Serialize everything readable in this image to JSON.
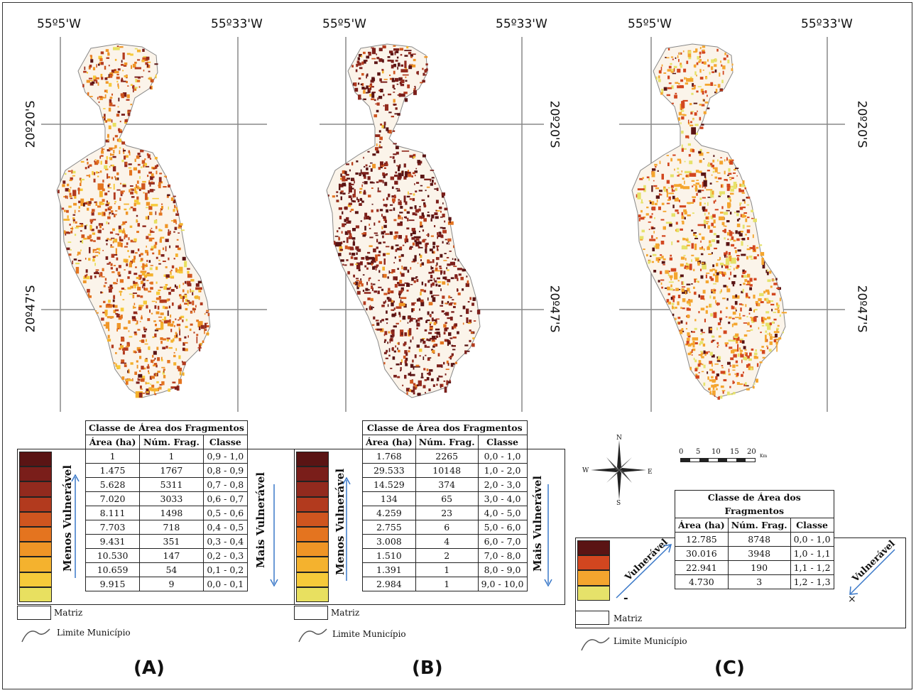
{
  "panels": {
    "a": {
      "letter": "(A)",
      "lon_left": "55º5'W",
      "lon_right": "55º33'W",
      "lat_top": "20º20'S",
      "lat_bottom": "20º47'S",
      "table_title": "Classe de Área dos Fragmentos",
      "headers": [
        "Área (ha)",
        "Núm. Frag.",
        "Classe"
      ],
      "rows": [
        [
          "1",
          "1",
          "0,9 - 1,0"
        ],
        [
          "1.475",
          "1767",
          "0,8 - 0,9"
        ],
        [
          "5.628",
          "5311",
          "0,7 - 0,8"
        ],
        [
          "7.020",
          "3033",
          "0,6 - 0,7"
        ],
        [
          "8.111",
          "1498",
          "0,5 - 0,6"
        ],
        [
          "7.703",
          "718",
          "0,4 - 0,5"
        ],
        [
          "9.431",
          "351",
          "0,3 - 0,4"
        ],
        [
          "10.530",
          "147",
          "0,2 - 0,3"
        ],
        [
          "10.659",
          "54",
          "0,1 - 0,2"
        ],
        [
          "9.915",
          "9",
          "0,0 - 0,1"
        ]
      ],
      "left_label": "Menos Vulnerável",
      "right_label": "Mais Vulnerável",
      "matriz": "Matriz",
      "limite": "Limite Município"
    },
    "b": {
      "letter": "(B)",
      "lon_left": "55º5'W",
      "lon_right": "55º33'W",
      "lat_top": "20º20'S",
      "lat_bottom": "20º47'S",
      "table_title": "Classe de Área dos Fragmentos",
      "headers": [
        "Área (ha)",
        "Núm. Frag.",
        "Classe"
      ],
      "rows": [
        [
          "1.768",
          "2265",
          "0,0 - 1,0"
        ],
        [
          "29.533",
          "10148",
          "1,0 - 2,0"
        ],
        [
          "14.529",
          "374",
          "2,0 - 3,0"
        ],
        [
          "134",
          "65",
          "3,0 - 4,0"
        ],
        [
          "4.259",
          "23",
          "4,0 - 5,0"
        ],
        [
          "2.755",
          "6",
          "5,0 - 6,0"
        ],
        [
          "3.008",
          "4",
          "6,0 - 7,0"
        ],
        [
          "1.510",
          "2",
          "7,0 - 8,0"
        ],
        [
          "1.391",
          "1",
          "8,0 - 9,0"
        ],
        [
          "2.984",
          "1",
          "9,0 - 10,0"
        ]
      ],
      "left_label": "Menos Vulnerável",
      "right_label": "Mais Vulnerável",
      "matriz": "Matriz",
      "limite": "Limite Município"
    },
    "c": {
      "letter": "(C)",
      "lon_left": "55º5'W",
      "lon_right": "55º33'W",
      "lat_top": "20º20'S",
      "lat_bottom": "20º47'S",
      "table_title_1": "Classe de Área dos",
      "table_title_2": "Fragmentos",
      "headers": [
        "Área (ha)",
        "Núm. Frag.",
        "Classe"
      ],
      "rows": [
        [
          "12.785",
          "8748",
          "0,0 - 1,0"
        ],
        [
          "30.016",
          "3948",
          "1,0 - 1,1"
        ],
        [
          "22.941",
          "190",
          "1,1 - 1,2"
        ],
        [
          "4.730",
          "3",
          "1,2 - 1,3"
        ]
      ],
      "left_label": "Vulnerável",
      "left_sign": "-",
      "right_label": "Vulnerável",
      "right_sign": "×",
      "matriz": "Matriz",
      "limite": "Limite Município",
      "compass": {
        "n": "N",
        "s": "S",
        "e": "E",
        "w": "W"
      },
      "scale_ticks": [
        "0",
        "5",
        "10",
        "15",
        "20"
      ],
      "scale_unit": "Km"
    }
  },
  "colors": {
    "a": [
      "#5a1414",
      "#7a1e1a",
      "#922a1e",
      "#b23a1e",
      "#cf551f",
      "#e4741f",
      "#ef9526",
      "#f4b22e",
      "#f6ca3a",
      "#e8e060"
    ],
    "b": [
      "#5a1414",
      "#7a1e1a",
      "#922a1e",
      "#b23a1e",
      "#cf551f",
      "#e4741f",
      "#ef9526",
      "#f4b22e",
      "#f6ca3a",
      "#e8e060"
    ],
    "c": [
      "#5a1414",
      "#d2461f",
      "#f4a52e",
      "#e6e26a"
    ]
  }
}
